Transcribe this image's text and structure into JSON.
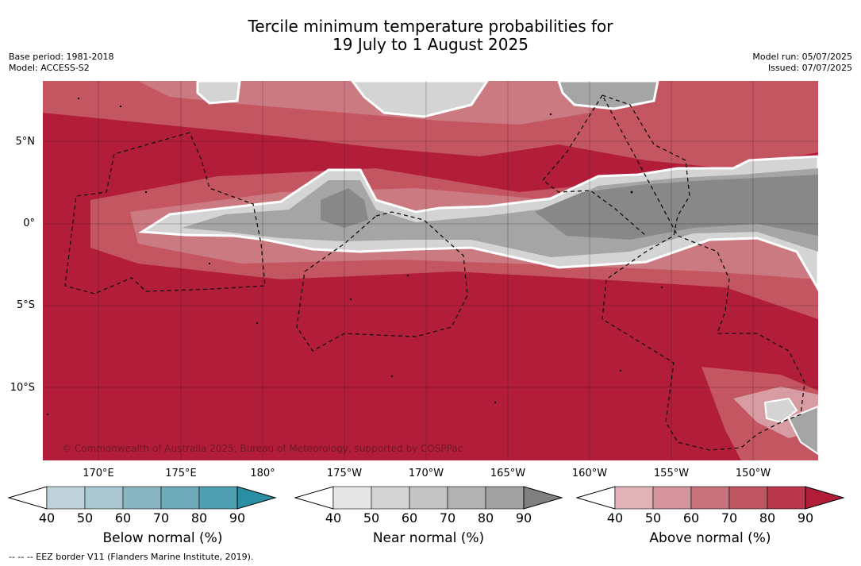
{
  "title": {
    "line1": "Tercile minimum temperature probabilities for",
    "line2": "19 July to 1 August 2025"
  },
  "meta_left": {
    "base_period": "Base period: 1981-2018",
    "model": "Model: ACCESS-S2"
  },
  "meta_right": {
    "model_run": "Model run: 05/07/2025",
    "issued": "Issued: 07/07/2025"
  },
  "map": {
    "latitude_labels": [
      "5°N",
      "0°",
      "5°S",
      "10°S"
    ],
    "longitude_labels": [
      "170°E",
      "175°E",
      "180°",
      "175°W",
      "170°W",
      "165°W",
      "160°W",
      "155°W",
      "150°W"
    ],
    "copyright": "© Commonwealth of Australia 2025, Bureau of Meteorology, supported by COSPPac",
    "colors": {
      "above_90": "#b21e3a",
      "above_80": "#bc3449",
      "above_70": "#c45662",
      "above_60": "#cc7a82",
      "above_50": "#d79ba2",
      "near_gray_dark": "#888888",
      "near_gray_mid": "#a5a5a5",
      "near_gray_light": "#d4d4d4"
    }
  },
  "colorbars": [
    {
      "label": "Below normal (%)",
      "ticks": [
        "40",
        "50",
        "60",
        "70",
        "80",
        "90"
      ],
      "colors": [
        "#bfd2d9",
        "#a8c7ce",
        "#8ab6c2",
        "#6eaab7",
        "#4fa0b0",
        "#2a8fa3"
      ]
    },
    {
      "label": "Near normal (%)",
      "ticks": [
        "40",
        "50",
        "60",
        "70",
        "80",
        "90"
      ],
      "colors": [
        "#e6e6e6",
        "#d4d4d4",
        "#c4c4c4",
        "#b2b2b2",
        "#a2a2a2",
        "#808080"
      ]
    },
    {
      "label": "Above normal (%)",
      "ticks": [
        "40",
        "50",
        "60",
        "70",
        "80",
        "90"
      ],
      "colors": [
        "#e0b3b9",
        "#d5959c",
        "#c8727c",
        "#bf5561",
        "#b8374a",
        "#b21e3a"
      ]
    }
  ],
  "footnote": "--  --  -- EEZ border V11 (Flanders Marine Institute, 2019)."
}
